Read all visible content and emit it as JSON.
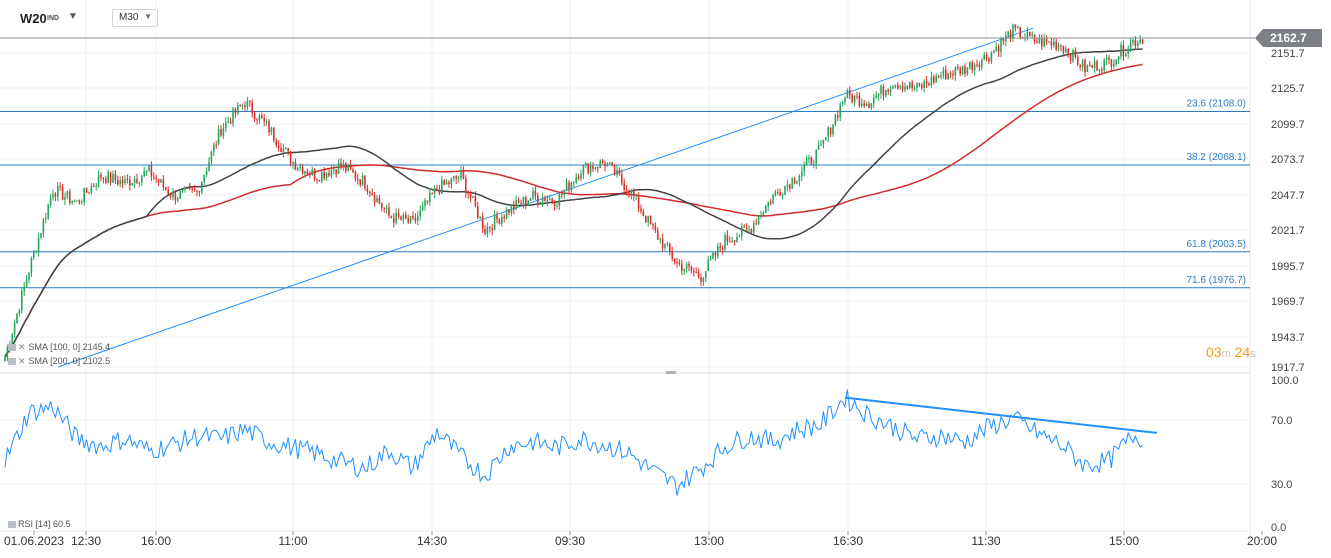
{
  "toolbar": {
    "symbol": "W20",
    "symbol_suffix": "IND",
    "timeframe": "M30"
  },
  "chart_data": [
    {
      "type": "candlestick",
      "title": "W20 IND",
      "timeframe": "M30",
      "x_tick_labels": [
        "01.06.2023",
        "12:30",
        "16:00",
        "11:00",
        "14:30",
        "09:30",
        "13:00",
        "16:30",
        "11:30",
        "15:00",
        "20:00"
      ],
      "y_tick_labels": [
        "2151.7",
        "2125.7",
        "2099.7",
        "2073.7",
        "2047.7",
        "2021.7",
        "1995.7",
        "1969.7",
        "1943.7",
        "1917.7"
      ],
      "ylim": [
        1917.7,
        2170
      ],
      "current_price": "2162.7",
      "approx_close_path": [
        [
          0,
          1925
        ],
        [
          10,
          1990
        ],
        [
          20,
          2050
        ],
        [
          30,
          2040
        ],
        [
          40,
          2060
        ],
        [
          50,
          2055
        ],
        [
          60,
          2063
        ],
        [
          70,
          2045
        ],
        [
          80,
          2048
        ],
        [
          90,
          2095
        ],
        [
          100,
          2115
        ],
        [
          110,
          2095
        ],
        [
          120,
          2070
        ],
        [
          130,
          2060
        ],
        [
          140,
          2068
        ],
        [
          150,
          2055
        ],
        [
          160,
          2030
        ],
        [
          170,
          2025
        ],
        [
          180,
          2050
        ],
        [
          190,
          2060
        ],
        [
          200,
          2020
        ],
        [
          210,
          2035
        ],
        [
          220,
          2045
        ],
        [
          230,
          2042
        ],
        [
          240,
          2065
        ],
        [
          250,
          2070
        ],
        [
          260,
          2050
        ],
        [
          270,
          2020
        ],
        [
          280,
          1995
        ],
        [
          290,
          1985
        ],
        [
          300,
          2012
        ],
        [
          310,
          2020
        ],
        [
          320,
          2045
        ],
        [
          330,
          2060
        ],
        [
          340,
          2080
        ],
        [
          350,
          2120
        ],
        [
          360,
          2115
        ],
        [
          370,
          2130
        ],
        [
          380,
          2125
        ],
        [
          390,
          2135
        ],
        [
          400,
          2140
        ],
        [
          410,
          2150
        ],
        [
          420,
          2168
        ],
        [
          430,
          2160
        ],
        [
          440,
          2158
        ],
        [
          450,
          2140
        ],
        [
          460,
          2145
        ],
        [
          470,
          2160
        ],
        [
          474,
          2162.7
        ]
      ],
      "indicators": [
        {
          "name": "SMA",
          "params": "[100,  0]",
          "value": "2145.4",
          "color": "#444444"
        },
        {
          "name": "SMA",
          "params": "[200,  0]",
          "value": "2102.5",
          "color": "#d22b2b"
        }
      ],
      "fibonacci_levels": [
        {
          "label": "23.6 (2108.0)",
          "level": 23.6,
          "price": 2108.0
        },
        {
          "label": "38.2 (2068.1)",
          "level": 38.2,
          "price": 2068.1
        },
        {
          "label": "61.8 (2003.5)",
          "level": 61.8,
          "price": 2003.5
        },
        {
          "label": "71.6 (1976.7)",
          "level": 71.6,
          "price": 1976.7
        }
      ],
      "trendlines": [
        {
          "name": "rising trendline",
          "from": [
            20,
            1917.7
          ],
          "to": [
            420,
            2170
          ]
        }
      ],
      "countdown": {
        "minutes": "03",
        "minutes_unit": "m",
        "seconds": "24",
        "seconds_unit": "s"
      }
    },
    {
      "type": "line",
      "title": "RSI",
      "legend": "RSI [14]  60.5",
      "value": "60.5",
      "y_tick_labels": [
        "100.0",
        "70.0",
        "30.0",
        "0.0"
      ],
      "ylim": [
        0,
        100
      ],
      "color": "#1e90ff",
      "approx_values": [
        [
          0,
          45
        ],
        [
          10,
          78
        ],
        [
          20,
          82
        ],
        [
          30,
          60
        ],
        [
          40,
          55
        ],
        [
          50,
          60
        ],
        [
          60,
          52
        ],
        [
          70,
          56
        ],
        [
          80,
          62
        ],
        [
          90,
          60
        ],
        [
          100,
          66
        ],
        [
          110,
          58
        ],
        [
          120,
          54
        ],
        [
          130,
          50
        ],
        [
          140,
          44
        ],
        [
          150,
          40
        ],
        [
          160,
          52
        ],
        [
          170,
          40
        ],
        [
          180,
          65
        ],
        [
          190,
          48
        ],
        [
          200,
          35
        ],
        [
          210,
          55
        ],
        [
          220,
          58
        ],
        [
          230,
          54
        ],
        [
          240,
          60
        ],
        [
          250,
          56
        ],
        [
          260,
          50
        ],
        [
          270,
          38
        ],
        [
          280,
          28
        ],
        [
          290,
          40
        ],
        [
          300,
          55
        ],
        [
          310,
          62
        ],
        [
          320,
          58
        ],
        [
          330,
          66
        ],
        [
          340,
          70
        ],
        [
          350,
          88
        ],
        [
          360,
          76
        ],
        [
          370,
          68
        ],
        [
          380,
          60
        ],
        [
          390,
          62
        ],
        [
          400,
          58
        ],
        [
          410,
          68
        ],
        [
          420,
          74
        ],
        [
          430,
          64
        ],
        [
          440,
          56
        ],
        [
          450,
          42
        ],
        [
          460,
          45
        ],
        [
          470,
          62
        ],
        [
          474,
          60.5
        ]
      ],
      "divergence_line": {
        "from": [
          350,
          88
        ],
        "to": [
          480,
          64
        ]
      }
    }
  ]
}
